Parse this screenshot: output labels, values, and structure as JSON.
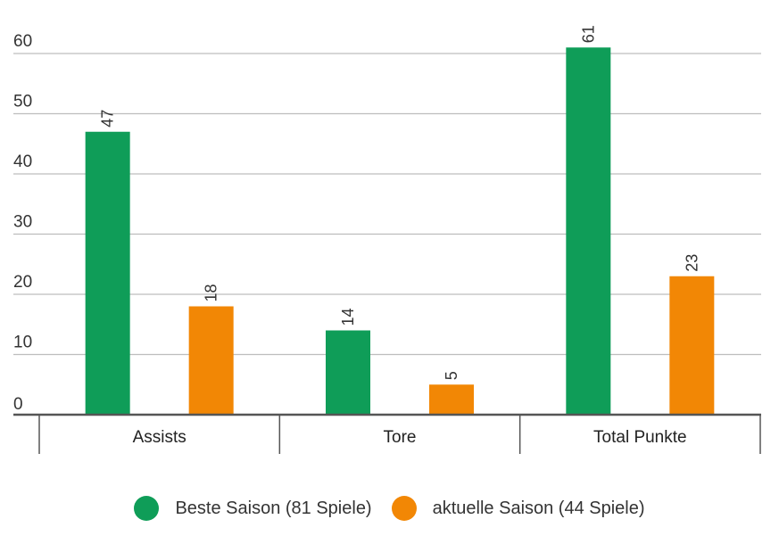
{
  "chart_data": {
    "type": "bar",
    "categories": [
      "Assists",
      "Tore",
      "Total Punkte"
    ],
    "series": [
      {
        "name": "Beste Saison (81 Spiele)",
        "values": [
          47,
          14,
          61
        ],
        "color": "#0f9d58"
      },
      {
        "name": "aktuelle Saison (44 Spiele)",
        "values": [
          18,
          5,
          23
        ],
        "color": "#f28705"
      }
    ],
    "y_ticks": [
      0,
      10,
      20,
      30,
      40,
      50,
      60
    ],
    "ylim": [
      0,
      60
    ],
    "grid": true,
    "data_labels": true,
    "data_label_orientation": "vertical",
    "legend_position": "bottom",
    "title": "",
    "xlabel": "",
    "ylabel": ""
  }
}
